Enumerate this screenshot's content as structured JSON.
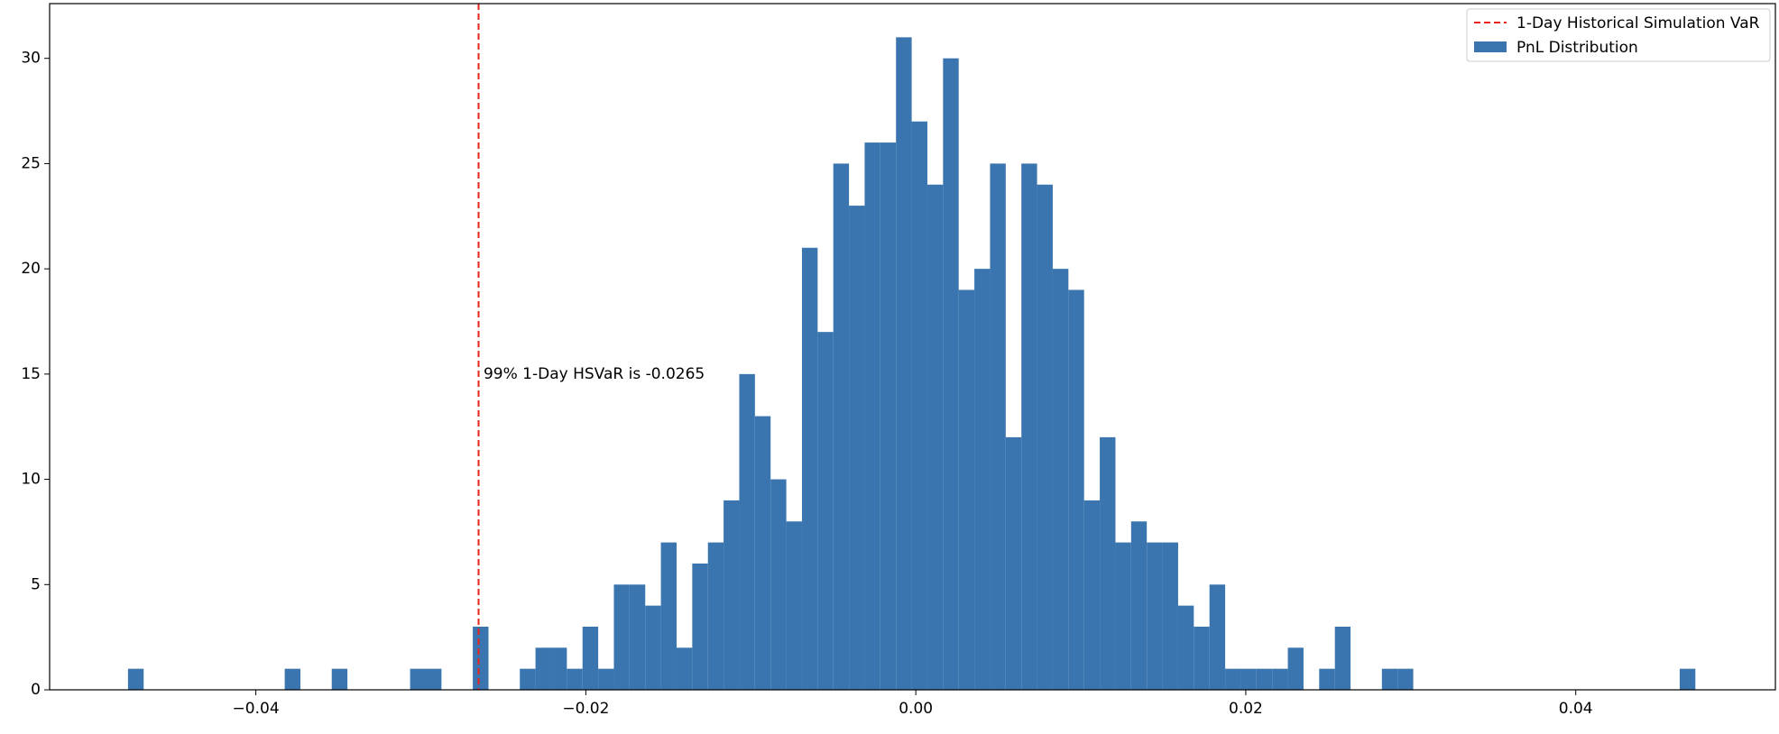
{
  "chart_data": {
    "type": "histogram",
    "bins": [
      -0.04775,
      -0.0468,
      -0.04585,
      -0.0449,
      -0.04395,
      -0.043,
      -0.04205,
      -0.0411,
      -0.04015,
      -0.0392,
      -0.03825,
      -0.0373,
      -0.03635,
      -0.0354,
      -0.03445,
      -0.0335,
      -0.03255,
      -0.0316,
      -0.03065,
      -0.0297,
      -0.02875,
      -0.0278,
      -0.02685,
      -0.0259,
      -0.02495,
      -0.024,
      -0.02305,
      -0.0221,
      -0.02115,
      -0.0202,
      -0.01925,
      -0.0183,
      -0.01735,
      -0.0164,
      -0.01545,
      -0.0145,
      -0.01355,
      -0.0126,
      -0.01165,
      -0.0107,
      -0.00975,
      -0.0088,
      -0.00785,
      -0.0069,
      -0.00595,
      -0.005,
      -0.00405,
      -0.0031,
      -0.00215,
      -0.0012,
      -0.00025,
      0.0007,
      0.00165,
      0.0026,
      0.00355,
      0.0045,
      0.00545,
      0.0064,
      0.00735,
      0.0083,
      0.00925,
      0.0102,
      0.01115,
      0.0121,
      0.01305,
      0.014,
      0.01495,
      0.0159,
      0.01685,
      0.0178,
      0.01875,
      0.0197,
      0.02065,
      0.0216,
      0.02255,
      0.0235,
      0.02445,
      0.0254,
      0.02635,
      0.0273,
      0.02825,
      0.0292,
      0.03015,
      0.0311,
      0.03205,
      0.033,
      0.03395,
      0.0349,
      0.03585,
      0.0368,
      0.03775,
      0.0387,
      0.03965,
      0.0406,
      0.04155,
      0.0425,
      0.04345,
      0.0444,
      0.04535,
      0.0463,
      0.04725
    ],
    "series": [
      {
        "name": "PnL Distribution",
        "color": "#3a75af",
        "values": [
          1,
          0,
          0,
          0,
          0,
          0,
          0,
          0,
          0,
          0,
          1,
          0,
          0,
          1,
          0,
          0,
          0,
          0,
          1,
          1,
          0,
          0,
          3,
          0,
          0,
          1,
          2,
          2,
          1,
          3,
          1,
          5,
          5,
          4,
          7,
          2,
          6,
          7,
          9,
          15,
          13,
          10,
          8,
          21,
          17,
          25,
          23,
          26,
          26,
          31,
          27,
          24,
          30,
          19,
          20,
          25,
          12,
          25,
          24,
          20,
          19,
          9,
          12,
          7,
          8,
          7,
          7,
          4,
          3,
          5,
          1,
          1,
          1,
          1,
          2,
          0,
          1,
          3,
          0,
          0,
          1,
          1,
          0,
          0,
          0,
          0,
          0,
          0,
          0,
          0,
          0,
          0,
          0,
          0,
          0,
          0,
          0,
          0,
          0,
          1
        ]
      }
    ],
    "var_line": {
      "name": "1-Day Historical Simulation VaR",
      "value": -0.0265,
      "color": "#e8241c"
    },
    "annotation": {
      "text": "99% 1-Day HSVaR is -0.0265",
      "x": -0.0262,
      "y": 15
    },
    "xlim": [
      -0.0525,
      0.0521
    ],
    "ylim": [
      0,
      32.6
    ],
    "xticks": [
      {
        "value": -0.04,
        "label": "−0.04"
      },
      {
        "value": -0.02,
        "label": "−0.02"
      },
      {
        "value": 0,
        "label": "0.00"
      },
      0.02,
      0.04
    ],
    "yticks": [
      0,
      5,
      10,
      15,
      20,
      25,
      30
    ],
    "legend": "upper right"
  }
}
